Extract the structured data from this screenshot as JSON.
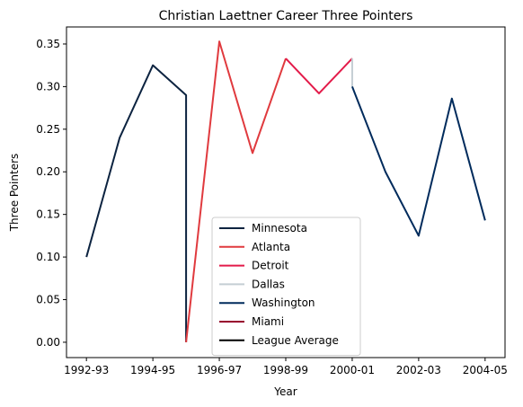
{
  "chart_data": {
    "type": "line",
    "title": "Christian Laettner Career Three Pointers",
    "xlabel": "Year",
    "ylabel": "Three Pointers",
    "x_tick_labels": [
      "1992-93",
      "1994-95",
      "1996-97",
      "1998-99",
      "2000-01",
      "2002-03",
      "2004-05"
    ],
    "x_tick_positions": [
      0,
      2,
      4,
      6,
      8,
      10,
      12
    ],
    "y_ticks": [
      0.0,
      0.05,
      0.1,
      0.15,
      0.2,
      0.25,
      0.3,
      0.35
    ],
    "y_tick_labels": [
      "0.00",
      "0.05",
      "0.10",
      "0.15",
      "0.20",
      "0.25",
      "0.30",
      "0.35"
    ],
    "xlim": [
      -0.6,
      12.6
    ],
    "ylim": [
      -0.018,
      0.37
    ],
    "legend_position": "lower center",
    "series": [
      {
        "name": "Minnesota",
        "color": "#0C2340",
        "x": [
          0,
          1,
          2,
          3,
          3
        ],
        "y": [
          0.1,
          0.24,
          0.325,
          0.29,
          0.0
        ]
      },
      {
        "name": "Atlanta",
        "color": "#E03A3E",
        "x": [
          3,
          4,
          5,
          6
        ],
        "y": [
          0.0,
          0.353,
          0.222,
          0.333
        ]
      },
      {
        "name": "Detroit",
        "color": "#E31B4A",
        "x": [
          6,
          7,
          8
        ],
        "y": [
          0.333,
          0.292,
          0.333
        ]
      },
      {
        "name": "Dallas",
        "color": "#C4CED4",
        "x": [
          8,
          8
        ],
        "y": [
          0.333,
          0.3
        ]
      },
      {
        "name": "Washington",
        "color": "#002B5C",
        "x": [
          8,
          9,
          10,
          11,
          12
        ],
        "y": [
          0.3,
          0.2,
          0.125,
          0.286,
          0.143
        ]
      },
      {
        "name": "Miami",
        "color": "#98002E",
        "x": [],
        "y": []
      },
      {
        "name": "League Average",
        "color": "#000000",
        "x": [],
        "y": []
      }
    ]
  }
}
